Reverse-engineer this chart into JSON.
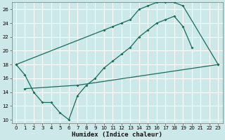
{
  "xlabel": "Humidex (Indice chaleur)",
  "bg_color": "#cce8e8",
  "grid_color": "#ffffff",
  "line_color": "#1a6b5a",
  "xlim": [
    -0.5,
    23.5
  ],
  "ylim": [
    9.5,
    27.0
  ],
  "xticks": [
    0,
    1,
    2,
    3,
    4,
    5,
    6,
    7,
    8,
    9,
    10,
    11,
    12,
    13,
    14,
    15,
    16,
    17,
    18,
    19,
    20,
    21,
    22,
    23
  ],
  "yticks": [
    10,
    12,
    14,
    16,
    18,
    20,
    22,
    24,
    26
  ],
  "line1_x": [
    0,
    1,
    2,
    3,
    4,
    5,
    6,
    7,
    8,
    9,
    10,
    11,
    12,
    13,
    14,
    15,
    16,
    17,
    18,
    19,
    20
  ],
  "line1_y": [
    18,
    16.5,
    14,
    12.5,
    12.5,
    11.0,
    10.0,
    13.5,
    15.0,
    16.0,
    17.5,
    18.5,
    19.5,
    20.5,
    22.0,
    23.0,
    24.0,
    24.5,
    25.0,
    23.5,
    20.5
  ],
  "line2_x": [
    0,
    10,
    11,
    12,
    13,
    14,
    15,
    16,
    17,
    18,
    19,
    23
  ],
  "line2_y": [
    18,
    23.0,
    23.5,
    24.0,
    24.5,
    26.0,
    26.5,
    27.0,
    27.0,
    27.0,
    26.5,
    18.0
  ],
  "line3_x": [
    1,
    7,
    23
  ],
  "line3_y": [
    14.5,
    15.0,
    18.0
  ]
}
